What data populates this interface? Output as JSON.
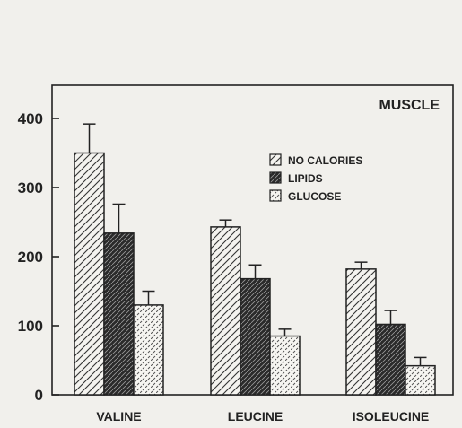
{
  "chart_data": {
    "type": "bar",
    "title": "MUSCLE",
    "categories": [
      "VALINE",
      "LEUCINE",
      "ISOLEUCINE"
    ],
    "series": [
      {
        "name": "NO CALORIES",
        "values": [
          350,
          243,
          182
        ],
        "errors": [
          42,
          10,
          10
        ],
        "pattern": "light-hatch"
      },
      {
        "name": "LIPIDS",
        "values": [
          234,
          168,
          102
        ],
        "errors": [
          42,
          20,
          20
        ],
        "pattern": "dark-hatch"
      },
      {
        "name": "GLUCOSE",
        "values": [
          130,
          85,
          42
        ],
        "errors": [
          20,
          10,
          12
        ],
        "pattern": "dotted"
      }
    ],
    "yticks": [
      0,
      100,
      200,
      300,
      400
    ],
    "ylim": [
      0,
      450
    ],
    "xlabel": "",
    "ylabel": "",
    "grid": false,
    "legend_position": "top-right",
    "colors": {
      "ink": "#222222",
      "background": "#f1f0ec"
    }
  }
}
